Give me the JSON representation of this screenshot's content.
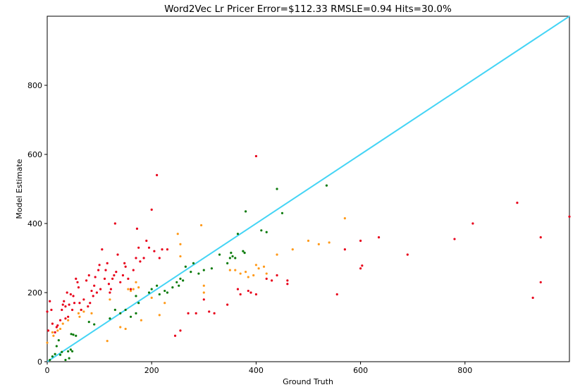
{
  "chart_data": {
    "type": "scatter",
    "title": "Word2Vec Lr Pricer Error=$112.33 RMSLE=0.94 Hits=30.0%",
    "xlabel": "Ground Truth",
    "ylabel": "Model Estimate",
    "xlim": [
      0,
      1000
    ],
    "ylim": [
      0,
      1000
    ],
    "xticks": [
      0,
      200,
      400,
      600,
      800
    ],
    "yticks": [
      0,
      200,
      400,
      600,
      800
    ],
    "grid": false,
    "reference_line": {
      "from": [
        0,
        0
      ],
      "to": [
        1000,
        1000
      ],
      "color": "#44d4f5"
    },
    "series": [
      {
        "color": "#0a7a0a",
        "points": [
          [
            5,
            5
          ],
          [
            10,
            15
          ],
          [
            15,
            22
          ],
          [
            18,
            45
          ],
          [
            22,
            62
          ],
          [
            25,
            20
          ],
          [
            28,
            28
          ],
          [
            35,
            5
          ],
          [
            40,
            30
          ],
          [
            42,
            10
          ],
          [
            45,
            35
          ],
          [
            46,
            80
          ],
          [
            48,
            30
          ],
          [
            50,
            78
          ],
          [
            55,
            75
          ],
          [
            80,
            115
          ],
          [
            90,
            108
          ],
          [
            120,
            125
          ],
          [
            130,
            150
          ],
          [
            140,
            140
          ],
          [
            150,
            150
          ],
          [
            160,
            130
          ],
          [
            170,
            140
          ],
          [
            170,
            190
          ],
          [
            175,
            170
          ],
          [
            195,
            200
          ],
          [
            200,
            210
          ],
          [
            210,
            220
          ],
          [
            215,
            195
          ],
          [
            225,
            205
          ],
          [
            230,
            200
          ],
          [
            240,
            215
          ],
          [
            248,
            230
          ],
          [
            252,
            220
          ],
          [
            255,
            240
          ],
          [
            260,
            235
          ],
          [
            265,
            275
          ],
          [
            275,
            260
          ],
          [
            280,
            285
          ],
          [
            290,
            255
          ],
          [
            300,
            265
          ],
          [
            315,
            270
          ],
          [
            330,
            310
          ],
          [
            345,
            285
          ],
          [
            350,
            300
          ],
          [
            352,
            315
          ],
          [
            355,
            305
          ],
          [
            360,
            300
          ],
          [
            365,
            370
          ],
          [
            375,
            320
          ],
          [
            378,
            315
          ],
          [
            380,
            435
          ],
          [
            410,
            380
          ],
          [
            420,
            375
          ],
          [
            440,
            500
          ],
          [
            450,
            430
          ],
          [
            535,
            510
          ]
        ]
      },
      {
        "color": "#ff9a1a",
        "points": [
          [
            0,
            55
          ],
          [
            10,
            85
          ],
          [
            12,
            75
          ],
          [
            20,
            90
          ],
          [
            25,
            95
          ],
          [
            30,
            110
          ],
          [
            40,
            120
          ],
          [
            60,
            140
          ],
          [
            62,
            130
          ],
          [
            65,
            150
          ],
          [
            70,
            145
          ],
          [
            85,
            140
          ],
          [
            115,
            60
          ],
          [
            120,
            180
          ],
          [
            140,
            100
          ],
          [
            150,
            95
          ],
          [
            155,
            210
          ],
          [
            160,
            205
          ],
          [
            165,
            210
          ],
          [
            170,
            230
          ],
          [
            175,
            215
          ],
          [
            180,
            120
          ],
          [
            200,
            185
          ],
          [
            215,
            135
          ],
          [
            225,
            170
          ],
          [
            250,
            370
          ],
          [
            255,
            340
          ],
          [
            255,
            305
          ],
          [
            295,
            395
          ],
          [
            300,
            220
          ],
          [
            300,
            200
          ],
          [
            350,
            265
          ],
          [
            360,
            265
          ],
          [
            370,
            255
          ],
          [
            380,
            260
          ],
          [
            385,
            245
          ],
          [
            395,
            250
          ],
          [
            400,
            280
          ],
          [
            405,
            270
          ],
          [
            415,
            275
          ],
          [
            420,
            255
          ],
          [
            440,
            310
          ],
          [
            470,
            325
          ],
          [
            500,
            350
          ],
          [
            520,
            340
          ],
          [
            540,
            345
          ],
          [
            570,
            415
          ]
        ]
      },
      {
        "color": "#e8001a",
        "points": [
          [
            0,
            145
          ],
          [
            2,
            90
          ],
          [
            5,
            175
          ],
          [
            8,
            150
          ],
          [
            10,
            110
          ],
          [
            15,
            85
          ],
          [
            18,
            100
          ],
          [
            20,
            105
          ],
          [
            25,
            120
          ],
          [
            28,
            150
          ],
          [
            30,
            165
          ],
          [
            32,
            175
          ],
          [
            35,
            160
          ],
          [
            35,
            125
          ],
          [
            38,
            200
          ],
          [
            40,
            130
          ],
          [
            42,
            165
          ],
          [
            45,
            195
          ],
          [
            48,
            150
          ],
          [
            50,
            190
          ],
          [
            52,
            170
          ],
          [
            55,
            240
          ],
          [
            58,
            230
          ],
          [
            60,
            215
          ],
          [
            62,
            170
          ],
          [
            65,
            150
          ],
          [
            70,
            180
          ],
          [
            75,
            235
          ],
          [
            78,
            160
          ],
          [
            80,
            250
          ],
          [
            82,
            170
          ],
          [
            85,
            205
          ],
          [
            88,
            190
          ],
          [
            90,
            220
          ],
          [
            92,
            245
          ],
          [
            95,
            200
          ],
          [
            98,
            265
          ],
          [
            100,
            280
          ],
          [
            102,
            210
          ],
          [
            105,
            325
          ],
          [
            110,
            240
          ],
          [
            112,
            265
          ],
          [
            115,
            285
          ],
          [
            118,
            225
          ],
          [
            120,
            200
          ],
          [
            122,
            210
          ],
          [
            125,
            240
          ],
          [
            128,
            250
          ],
          [
            130,
            400
          ],
          [
            132,
            260
          ],
          [
            135,
            310
          ],
          [
            140,
            230
          ],
          [
            145,
            250
          ],
          [
            148,
            285
          ],
          [
            150,
            275
          ],
          [
            155,
            240
          ],
          [
            160,
            210
          ],
          [
            165,
            265
          ],
          [
            170,
            300
          ],
          [
            172,
            385
          ],
          [
            175,
            330
          ],
          [
            178,
            290
          ],
          [
            185,
            300
          ],
          [
            190,
            350
          ],
          [
            195,
            330
          ],
          [
            200,
            440
          ],
          [
            205,
            320
          ],
          [
            210,
            540
          ],
          [
            215,
            300
          ],
          [
            220,
            325
          ],
          [
            230,
            325
          ],
          [
            245,
            75
          ],
          [
            255,
            90
          ],
          [
            270,
            140
          ],
          [
            285,
            140
          ],
          [
            300,
            180
          ],
          [
            310,
            145
          ],
          [
            320,
            140
          ],
          [
            345,
            165
          ],
          [
            365,
            210
          ],
          [
            370,
            195
          ],
          [
            385,
            205
          ],
          [
            390,
            200
          ],
          [
            400,
            595
          ],
          [
            400,
            195
          ],
          [
            420,
            240
          ],
          [
            430,
            235
          ],
          [
            440,
            250
          ],
          [
            460,
            235
          ],
          [
            460,
            225
          ],
          [
            555,
            195
          ],
          [
            570,
            325
          ],
          [
            600,
            350
          ],
          [
            600,
            270
          ],
          [
            603,
            278
          ],
          [
            635,
            360
          ],
          [
            690,
            310
          ],
          [
            780,
            355
          ],
          [
            815,
            400
          ],
          [
            900,
            460
          ],
          [
            930,
            185
          ],
          [
            945,
            230
          ],
          [
            945,
            360
          ],
          [
            1000,
            420
          ]
        ]
      }
    ]
  }
}
